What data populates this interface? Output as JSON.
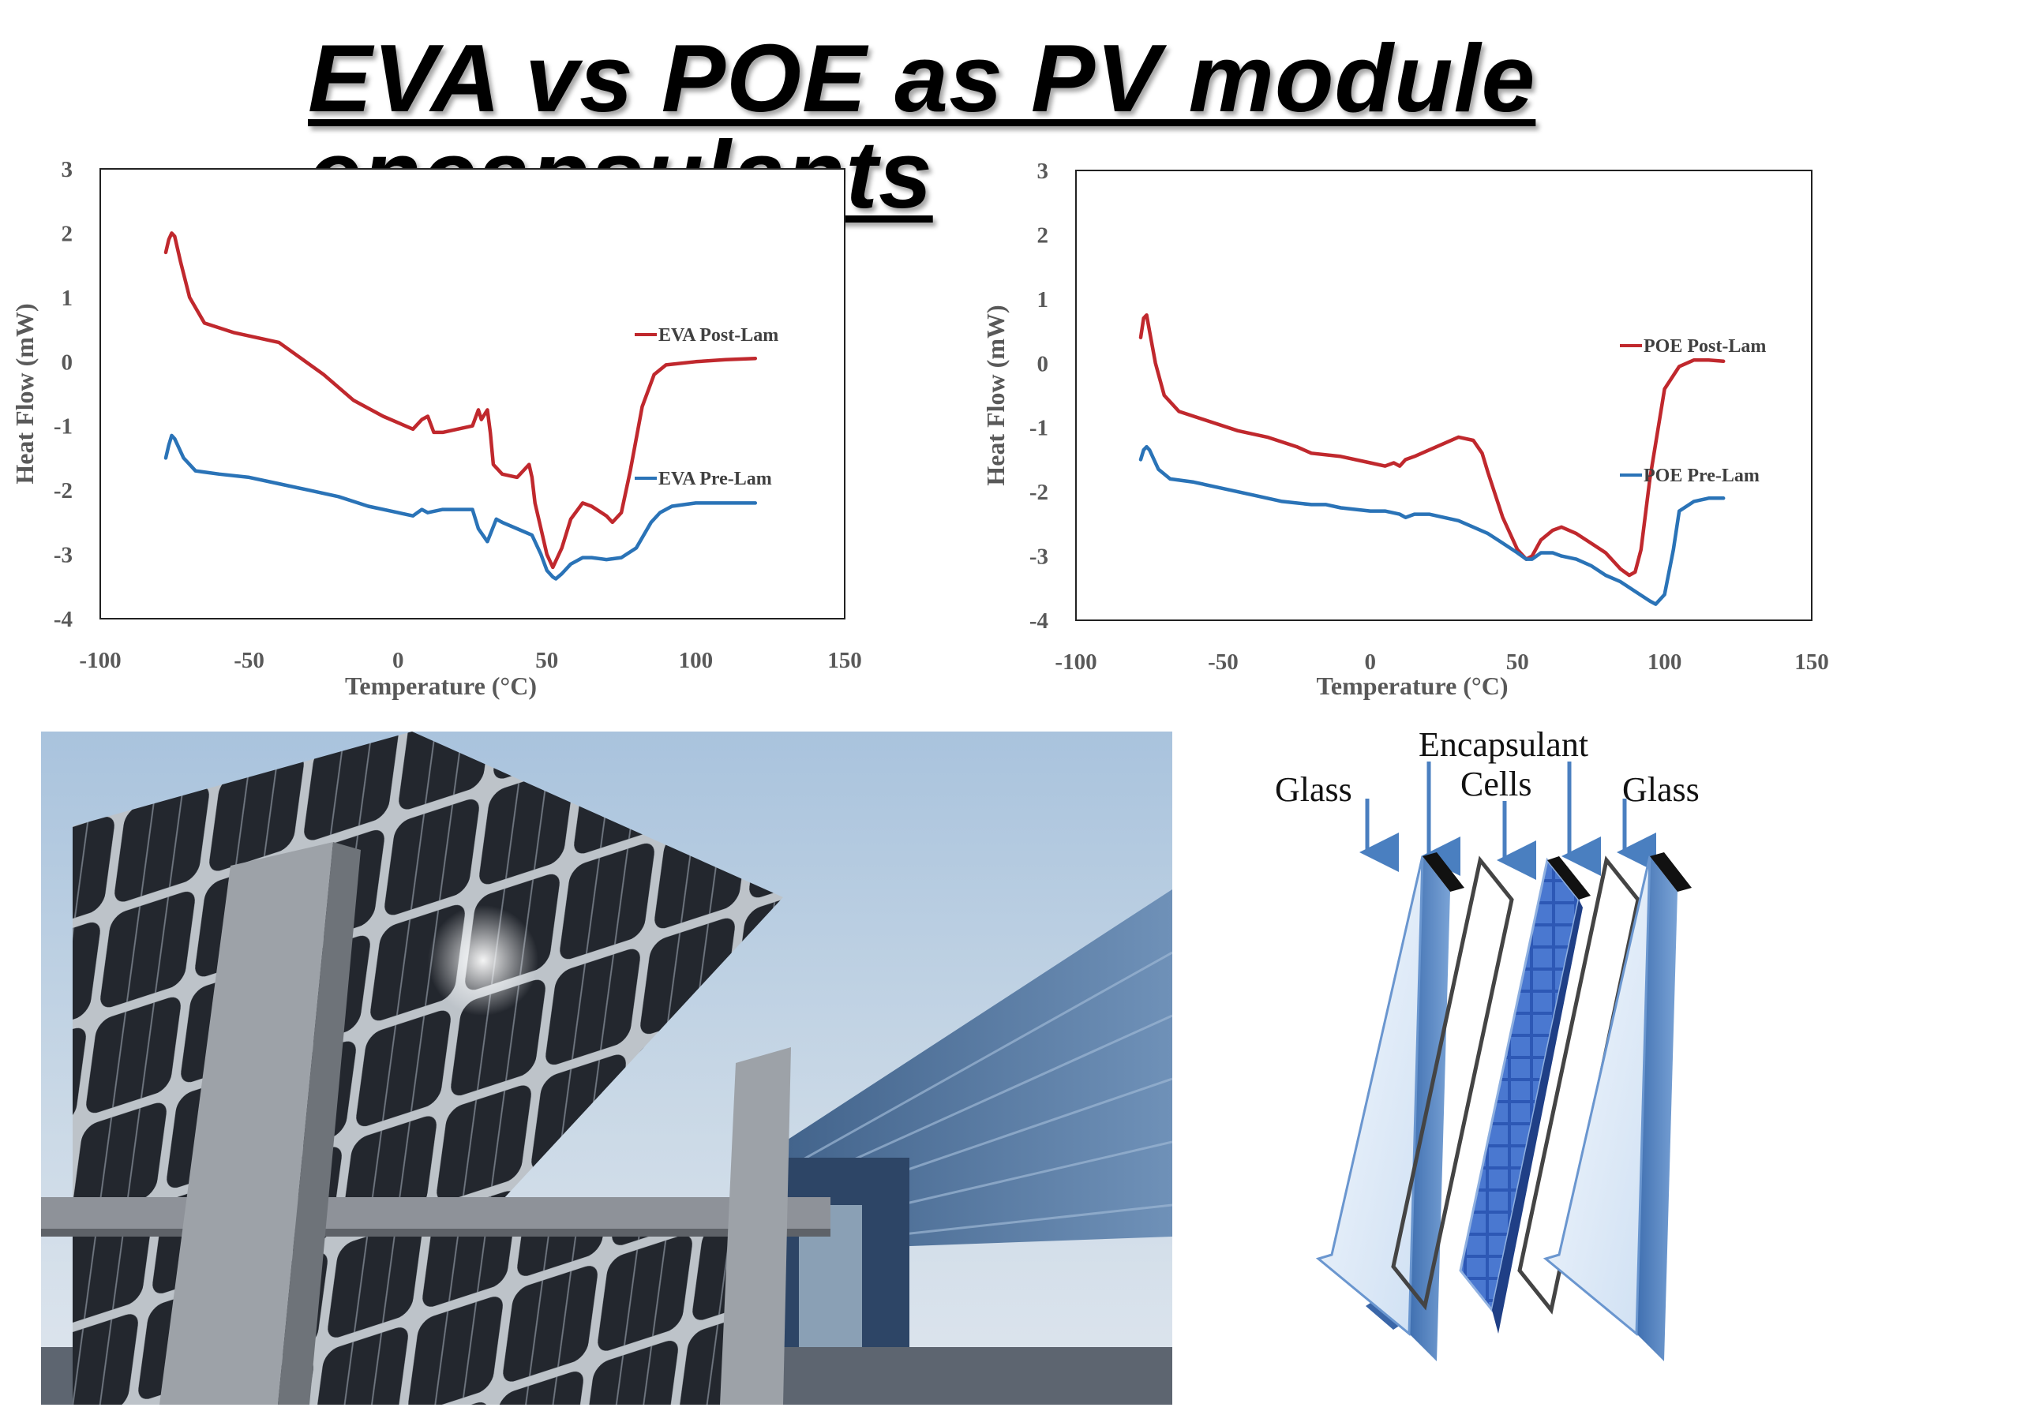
{
  "title": "EVA vs POE as PV module encapsulants",
  "chart_data": [
    {
      "type": "line",
      "title": "",
      "xlabel": "Temperature (°C)",
      "ylabel": "Heat Flow (mW)",
      "xlim": [
        -100,
        150
      ],
      "ylim": [
        -4,
        3
      ],
      "xticks": [
        -100,
        -50,
        0,
        50,
        100,
        150
      ],
      "yticks": [
        3,
        2,
        1,
        0,
        -1,
        -2,
        -3,
        -4
      ],
      "series": [
        {
          "name": "EVA Post-Lam",
          "color": "#c0282d",
          "x": [
            -78,
            -77,
            -76,
            -75,
            -73,
            -70,
            -65,
            -55,
            -40,
            -25,
            -15,
            -5,
            5,
            8,
            10,
            12,
            15,
            20,
            25,
            27,
            28,
            30,
            31,
            32,
            35,
            40,
            44,
            45,
            46,
            48,
            50,
            52,
            55,
            58,
            62,
            65,
            70,
            72,
            75,
            78,
            82,
            86,
            90,
            100,
            110,
            120
          ],
          "y": [
            1.7,
            1.9,
            2.0,
            1.95,
            1.55,
            1.0,
            0.6,
            0.45,
            0.3,
            -0.2,
            -0.6,
            -0.85,
            -1.05,
            -0.9,
            -0.85,
            -1.1,
            -1.1,
            -1.05,
            -1.0,
            -0.75,
            -0.9,
            -0.75,
            -1.1,
            -1.6,
            -1.75,
            -1.8,
            -1.6,
            -1.8,
            -2.2,
            -2.6,
            -3.0,
            -3.2,
            -2.9,
            -2.45,
            -2.2,
            -2.25,
            -2.4,
            -2.5,
            -2.35,
            -1.7,
            -0.7,
            -0.2,
            -0.05,
            0.0,
            0.03,
            0.05
          ]
        },
        {
          "name": "EVA Pre-Lam",
          "color": "#2a73b7",
          "x": [
            -78,
            -77,
            -76,
            -75,
            -72,
            -68,
            -60,
            -50,
            -40,
            -30,
            -20,
            -10,
            0,
            5,
            8,
            10,
            15,
            20,
            25,
            27,
            30,
            33,
            35,
            40,
            45,
            48,
            50,
            52,
            53,
            55,
            58,
            62,
            65,
            70,
            75,
            80,
            85,
            88,
            92,
            100,
            110,
            120
          ],
          "y": [
            -1.5,
            -1.3,
            -1.15,
            -1.2,
            -1.5,
            -1.7,
            -1.75,
            -1.8,
            -1.9,
            -2.0,
            -2.1,
            -2.25,
            -2.35,
            -2.4,
            -2.3,
            -2.35,
            -2.3,
            -2.3,
            -2.3,
            -2.6,
            -2.8,
            -2.45,
            -2.5,
            -2.6,
            -2.7,
            -3.0,
            -3.25,
            -3.35,
            -3.38,
            -3.3,
            -3.15,
            -3.05,
            -3.05,
            -3.08,
            -3.05,
            -2.9,
            -2.5,
            -2.35,
            -2.25,
            -2.2,
            -2.2,
            -2.2
          ]
        }
      ]
    },
    {
      "type": "line",
      "title": "",
      "xlabel": "Temperature (°C)",
      "ylabel": "Heat Flow (mW)",
      "xlim": [
        -100,
        150
      ],
      "ylim": [
        -4,
        3
      ],
      "xticks": [
        -100,
        -50,
        0,
        50,
        100,
        150
      ],
      "yticks": [
        3,
        2,
        1,
        0,
        -1,
        -2,
        -3,
        -4
      ],
      "series": [
        {
          "name": "POE Post-Lam",
          "color": "#c0282d",
          "x": [
            -78,
            -77,
            -76,
            -75,
            -73,
            -70,
            -65,
            -55,
            -45,
            -35,
            -25,
            -20,
            -10,
            0,
            5,
            8,
            10,
            12,
            15,
            20,
            25,
            30,
            35,
            38,
            40,
            45,
            50,
            53,
            55,
            58,
            62,
            65,
            70,
            75,
            80,
            85,
            88,
            90,
            92,
            95,
            100,
            105,
            110,
            115,
            120
          ],
          "y": [
            0.4,
            0.7,
            0.75,
            0.5,
            0.0,
            -0.5,
            -0.75,
            -0.9,
            -1.05,
            -1.15,
            -1.3,
            -1.4,
            -1.45,
            -1.55,
            -1.6,
            -1.55,
            -1.6,
            -1.5,
            -1.45,
            -1.35,
            -1.25,
            -1.15,
            -1.2,
            -1.4,
            -1.7,
            -2.4,
            -2.9,
            -3.05,
            -3.0,
            -2.75,
            -2.6,
            -2.55,
            -2.65,
            -2.8,
            -2.95,
            -3.2,
            -3.3,
            -3.25,
            -2.9,
            -1.8,
            -0.4,
            -0.05,
            0.05,
            0.05,
            0.03
          ]
        },
        {
          "name": "POE Pre-Lam",
          "color": "#2a73b7",
          "x": [
            -78,
            -77,
            -76,
            -75,
            -72,
            -68,
            -60,
            -50,
            -40,
            -30,
            -20,
            -15,
            -10,
            0,
            5,
            10,
            12,
            15,
            20,
            25,
            30,
            35,
            40,
            45,
            50,
            53,
            55,
            58,
            62,
            65,
            70,
            75,
            80,
            85,
            90,
            95,
            97,
            100,
            103,
            105,
            110,
            115,
            120
          ],
          "y": [
            -1.5,
            -1.35,
            -1.3,
            -1.35,
            -1.65,
            -1.8,
            -1.85,
            -1.95,
            -2.05,
            -2.15,
            -2.2,
            -2.2,
            -2.25,
            -2.3,
            -2.3,
            -2.35,
            -2.4,
            -2.35,
            -2.35,
            -2.4,
            -2.45,
            -2.55,
            -2.65,
            -2.8,
            -2.95,
            -3.05,
            -3.05,
            -2.95,
            -2.95,
            -3.0,
            -3.05,
            -3.15,
            -3.3,
            -3.4,
            -3.55,
            -3.7,
            -3.75,
            -3.6,
            -2.9,
            -2.3,
            -2.15,
            -2.1,
            -2.1
          ]
        }
      ]
    }
  ],
  "diagram": {
    "labels": {
      "glass_left": "Glass",
      "encapsulant": "Encapsulant",
      "cells": "Cells",
      "glass_right": "Glass"
    }
  },
  "photo": {
    "subject": "Bifacial solar panel array in front of a glass building"
  },
  "colors": {
    "red_series": "#c0282d",
    "blue_series": "#2a73b7",
    "axis": "#595959",
    "glass_blue": "#4a7fc0"
  }
}
